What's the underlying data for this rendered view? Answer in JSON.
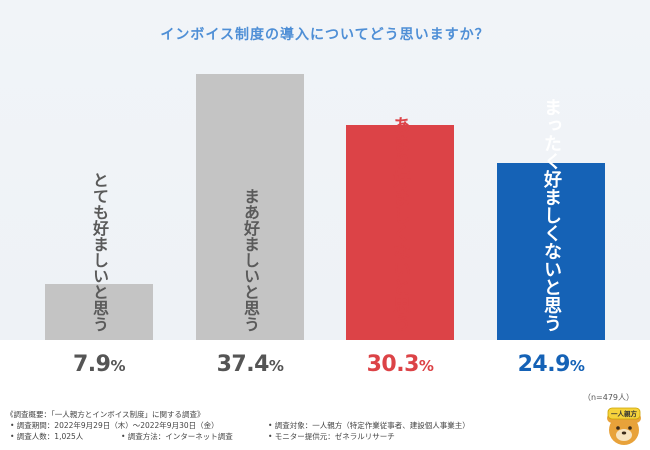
{
  "chart_data": {
    "type": "bar",
    "title": "インボイス制度の導入についてどう思いますか？",
    "categories": [
      "とても好ましいと思う",
      "まあ好ましいと思う",
      "あまり好ましくないと思う",
      "まったく好ましくないと思う"
    ],
    "values": [
      7.9,
      37.4,
      30.3,
      24.9
    ],
    "value_labels": [
      "7.9",
      "37.4",
      "30.3",
      "24.9"
    ],
    "unit": "%",
    "ylim": [
      0,
      40
    ],
    "bar_colors": [
      "#c4c4c4",
      "#c4c4c4",
      "#dc4347",
      "#1562b6"
    ],
    "label_colors": [
      "#5a5a5a",
      "#5a5a5a",
      "#dc4347",
      "#ffffff"
    ],
    "value_colors": [
      "#555555",
      "#555555",
      "#dc4347",
      "#1562b6"
    ],
    "sample_note": "（n=479人）"
  },
  "colors": {
    "title": "#4f8fd6"
  },
  "footer": {
    "lines": [
      "《調査概要：「一人親方とインボイス制度」に関する調査》",
      "• 調査期間：2022年9月29日（木）〜2022年9月30日（金）",
      "• 調査人数：1,025人",
      "• 調査方法：インターネット調査",
      "• 調査対象：一人親方（特定作業従事者、建設個人事業主）",
      "• モニター提供元：ゼネラルリサーチ"
    ]
  },
  "logo": {
    "text": "一人親方",
    "icon": "bear-mascot-icon"
  }
}
